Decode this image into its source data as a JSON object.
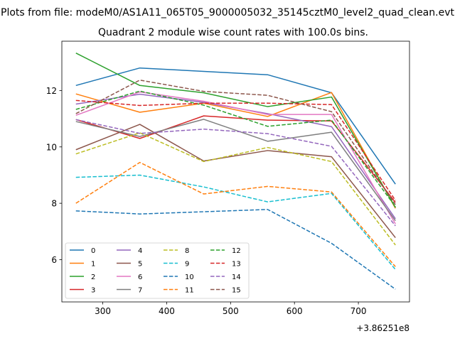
{
  "figure": {
    "suptitle": "Plots from file: modeM0/AS1A11_065T05_9000005032_35145cztM0_level2_quad_clean.evt"
  },
  "chart_data": {
    "type": "line",
    "title": "Quadrant 2 module wise count rates with 100.0s bins.",
    "xlabel": "",
    "ylabel": "",
    "x_offset_label": "+3.86251e8",
    "x": [
      258,
      358,
      458,
      558,
      658,
      758
    ],
    "xlim": [
      236,
      780
    ],
    "ylim": [
      4.5,
      13.75
    ],
    "xticks": [
      300,
      400,
      500,
      600,
      700
    ],
    "yticks": [
      6,
      8,
      10,
      12
    ],
    "grid": false,
    "legend_position": "lower-left",
    "legend_columns": 4,
    "series": [
      {
        "name": "0",
        "color": "#1f77b4",
        "dash": "solid",
        "values": [
          12.18,
          12.8,
          12.68,
          12.56,
          11.92,
          8.68
        ]
      },
      {
        "name": "1",
        "color": "#ff7f0e",
        "dash": "solid",
        "values": [
          11.88,
          11.23,
          11.55,
          11.08,
          11.93,
          7.82
        ]
      },
      {
        "name": "2",
        "color": "#2ca02c",
        "dash": "solid",
        "values": [
          13.33,
          12.18,
          11.92,
          11.43,
          11.77,
          7.85
        ]
      },
      {
        "name": "3",
        "color": "#d62728",
        "dash": "solid",
        "values": [
          10.97,
          10.3,
          11.1,
          10.95,
          10.92,
          8.03
        ]
      },
      {
        "name": "4",
        "color": "#9467bd",
        "dash": "solid",
        "values": [
          11.52,
          11.87,
          11.58,
          11.18,
          10.72,
          7.45
        ]
      },
      {
        "name": "5",
        "color": "#8c564b",
        "dash": "solid",
        "values": [
          9.9,
          10.8,
          9.5,
          9.87,
          9.65,
          6.78
        ]
      },
      {
        "name": "6",
        "color": "#e377c2",
        "dash": "solid",
        "values": [
          11.12,
          11.95,
          11.62,
          11.15,
          11.15,
          7.27
        ]
      },
      {
        "name": "7",
        "color": "#7f7f7f",
        "dash": "solid",
        "values": [
          10.9,
          10.37,
          10.98,
          10.2,
          10.52,
          7.38
        ]
      },
      {
        "name": "8",
        "color": "#bcbd22",
        "dash": "dashed",
        "values": [
          9.75,
          10.5,
          9.48,
          9.98,
          9.48,
          6.52
        ]
      },
      {
        "name": "9",
        "color": "#17becf",
        "dash": "dashed",
        "values": [
          8.92,
          9.0,
          8.58,
          8.05,
          8.35,
          5.65
        ]
      },
      {
        "name": "10",
        "color": "#1f77b4",
        "dash": "dashed",
        "values": [
          7.73,
          7.62,
          7.7,
          7.78,
          6.58,
          4.95
        ]
      },
      {
        "name": "11",
        "color": "#ff7f0e",
        "dash": "dashed",
        "values": [
          8.0,
          9.45,
          8.33,
          8.6,
          8.4,
          5.75
        ]
      },
      {
        "name": "12",
        "color": "#2ca02c",
        "dash": "dashed",
        "values": [
          11.33,
          11.98,
          11.48,
          10.73,
          10.95,
          7.88
        ]
      },
      {
        "name": "13",
        "color": "#d62728",
        "dash": "dashed",
        "values": [
          11.65,
          11.47,
          11.55,
          11.55,
          11.5,
          8.1
        ]
      },
      {
        "name": "14",
        "color": "#9467bd",
        "dash": "dashed",
        "values": [
          10.97,
          10.48,
          10.63,
          10.47,
          10.02,
          7.2
        ]
      },
      {
        "name": "15",
        "color": "#8c564b",
        "dash": "dashed",
        "values": [
          11.18,
          12.37,
          11.97,
          11.83,
          11.25,
          7.95
        ]
      }
    ]
  }
}
